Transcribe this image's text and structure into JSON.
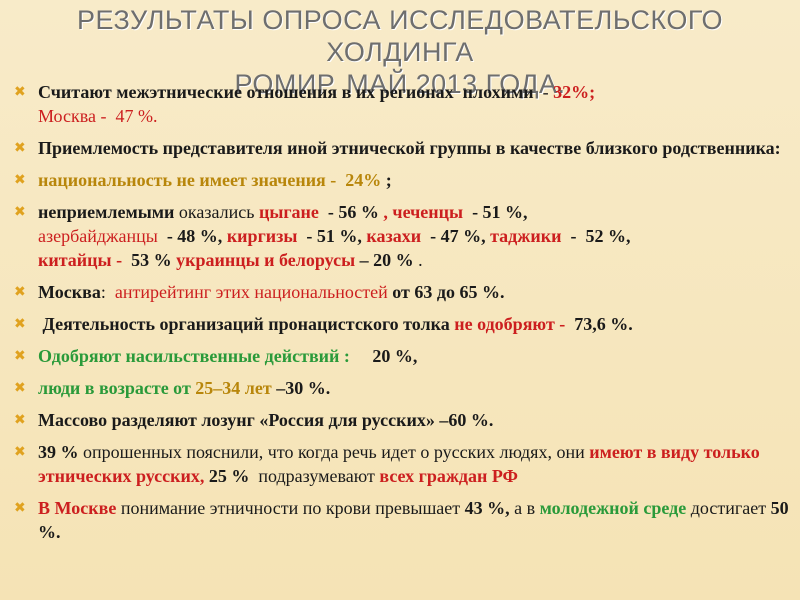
{
  "title": {
    "line1": "РЕЗУЛЬТАТЫ ОПРОСА ИССЛЕДОВАТЕЛЬСКОГО ХОЛДИНГА",
    "line2": "РОМИР.  МАЙ 2013 ГОДА."
  },
  "bullet_icon": "x-mark",
  "colors": {
    "accent_bullet": "#e0a21f",
    "red": "#cc1f1f",
    "gold": "#b8860b",
    "green": "#2a9a3a"
  },
  "items": [
    {
      "a": "Считают межэтнические отношения в их регионах  плохими",
      "b": "  - ",
      "c": "32%;",
      "d": "Москва -  47 %."
    },
    {
      "a": "Приемлемость представителя иной этнической группы в качестве близкого родственника:"
    },
    {
      "a": "национальность не имеет значения -  24%",
      "b": " ;"
    },
    {
      "a": "неприемлемыми",
      "b": " оказались ",
      "c": "цыгане",
      "d": "  - 56 %",
      "e": " , ",
      "f": "чеченцы",
      "g": "  - 51 %, ",
      "h": "азербайджанцы",
      "i": "  - 48 %, ",
      "j": "киргизы",
      "k": "  - 51 %, ",
      "l": "казахи",
      "m": "  - 47 %, ",
      "n": "таджики",
      "o": "  -  52 %, ",
      "p": "китайцы -",
      "q": "  53 % ",
      "r": "украинцы и белорусы",
      "s": " – 20 %",
      "t": " ."
    },
    {
      "a": "Москва",
      "b": ":  ",
      "c": "антирейтинг этих национальностей",
      "d": " от 63 до 65 %."
    },
    {
      "a": " Деятельность организаций пронацистского толка ",
      "b": "не одобряют -",
      "c": "  73,6 %."
    },
    {
      "a": "Одобряют насильственные действий :",
      "b": "     20 %,"
    },
    {
      "a": "люди в возрасте от ",
      "b": "25–34 лет",
      "c": " –30 %."
    },
    {
      "a": "Массово разделяют лозунг «Россия для русских» –60 %."
    },
    {
      "a": "39 %",
      "b": " опрошенных пояснили, что когда речь идет о русских людях, они ",
      "c": "имеют в виду только этнических русских,",
      "d": " 25 %",
      "e": "  подразумевают ",
      "f": "всех граждан РФ"
    },
    {
      "a": "В Москве",
      "b": " понимание этничности по крови превышает ",
      "c": "43 %,",
      "d": " а в ",
      "e": "молодежной среде",
      "f": " достигает ",
      "g": "50 %."
    }
  ]
}
